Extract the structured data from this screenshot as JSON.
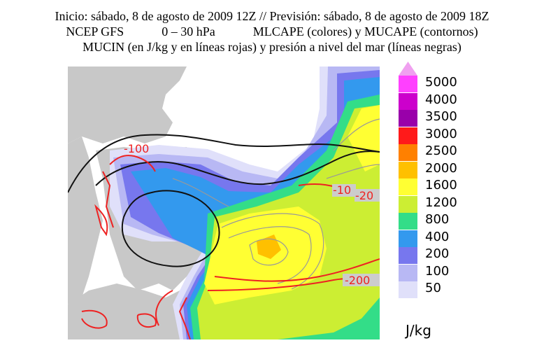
{
  "header": {
    "line1": "Inicio: sábado, 8 de agosto de 2009 12Z // Previsión: sábado, 8 de agosto de 2009 18Z",
    "line2": "NCEP GFS            0 – 30 hPa            MLCAPE (colores) y MUCAPE (contornos)",
    "line3": "MUCIN (en J/kg y en líneas rojas) y presión a nivel del mar (líneas negras)"
  },
  "map_labels": {
    "label_a": "-100",
    "label_b": "-10",
    "label_c": "-20",
    "label_d": "-200"
  },
  "legend": {
    "top_arrow_color": "#f0a0f0",
    "items": [
      {
        "label": "5000",
        "color": "#ff40ff"
      },
      {
        "label": "4000",
        "color": "#cc00cc"
      },
      {
        "label": "3500",
        "color": "#9900aa"
      },
      {
        "label": "3000",
        "color": "#ff1a1a"
      },
      {
        "label": "2500",
        "color": "#ff8000"
      },
      {
        "label": "2000",
        "color": "#ffc000"
      },
      {
        "label": "1600",
        "color": "#ffff33"
      },
      {
        "label": "1200",
        "color": "#ccee33"
      },
      {
        "label": "800",
        "color": "#33dd88"
      },
      {
        "label": "400",
        "color": "#3399ee"
      },
      {
        "label": "200",
        "color": "#7777ee"
      },
      {
        "label": "100",
        "color": "#b8b8f4"
      },
      {
        "label": "50",
        "color": "#e0e0fa"
      }
    ],
    "unit": "J/kg"
  },
  "colors": {
    "land": "#c8c8c8",
    "sea": "#ffffff",
    "cin_line": "#ee2222",
    "pressure_line": "#111111",
    "cape_contour": "#999999"
  }
}
